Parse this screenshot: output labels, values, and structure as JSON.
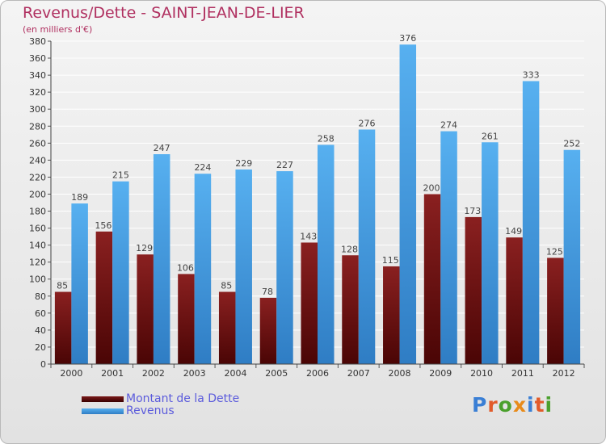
{
  "title": "Revenus/Dette - SAINT-JEAN-DE-LIER",
  "subtitle": "(en milliers d'€)",
  "logo": {
    "text": "Proxiti",
    "letter_colors": [
      "#3a7fd5",
      "#e25b2a",
      "#4aa02c",
      "#e88b1a",
      "#3a7fd5",
      "#e25b2a",
      "#4aa02c"
    ]
  },
  "colors": {
    "dette": "#7a1a1a",
    "dette_dark": "#4a0505",
    "revenus": "#4aa3e6",
    "revenus_dark": "#2f7dc4",
    "title": "#b03060",
    "legend_text": "#5b5bdc"
  },
  "chart_data": {
    "type": "bar",
    "title": "Revenus/Dette - SAINT-JEAN-DE-LIER",
    "subtitle": "(en milliers d'€)",
    "xlabel": "",
    "ylabel": "",
    "categories": [
      "2000",
      "2001",
      "2002",
      "2003",
      "2004",
      "2005",
      "2006",
      "2007",
      "2008",
      "2009",
      "2010",
      "2011",
      "2012"
    ],
    "series": [
      {
        "name": "Montant de la Dette",
        "values": [
          85,
          156,
          129,
          106,
          85,
          78,
          143,
          128,
          115,
          200,
          173,
          149,
          125
        ]
      },
      {
        "name": "Revenus",
        "values": [
          189,
          215,
          247,
          224,
          229,
          227,
          258,
          276,
          376,
          274,
          261,
          333,
          252
        ]
      }
    ],
    "ylim": [
      0,
      380
    ],
    "yticks": [
      0,
      20,
      40,
      60,
      80,
      100,
      120,
      140,
      160,
      180,
      200,
      220,
      240,
      260,
      280,
      300,
      320,
      340,
      360,
      380
    ],
    "grid": true,
    "legend_position": "bottom-left"
  }
}
